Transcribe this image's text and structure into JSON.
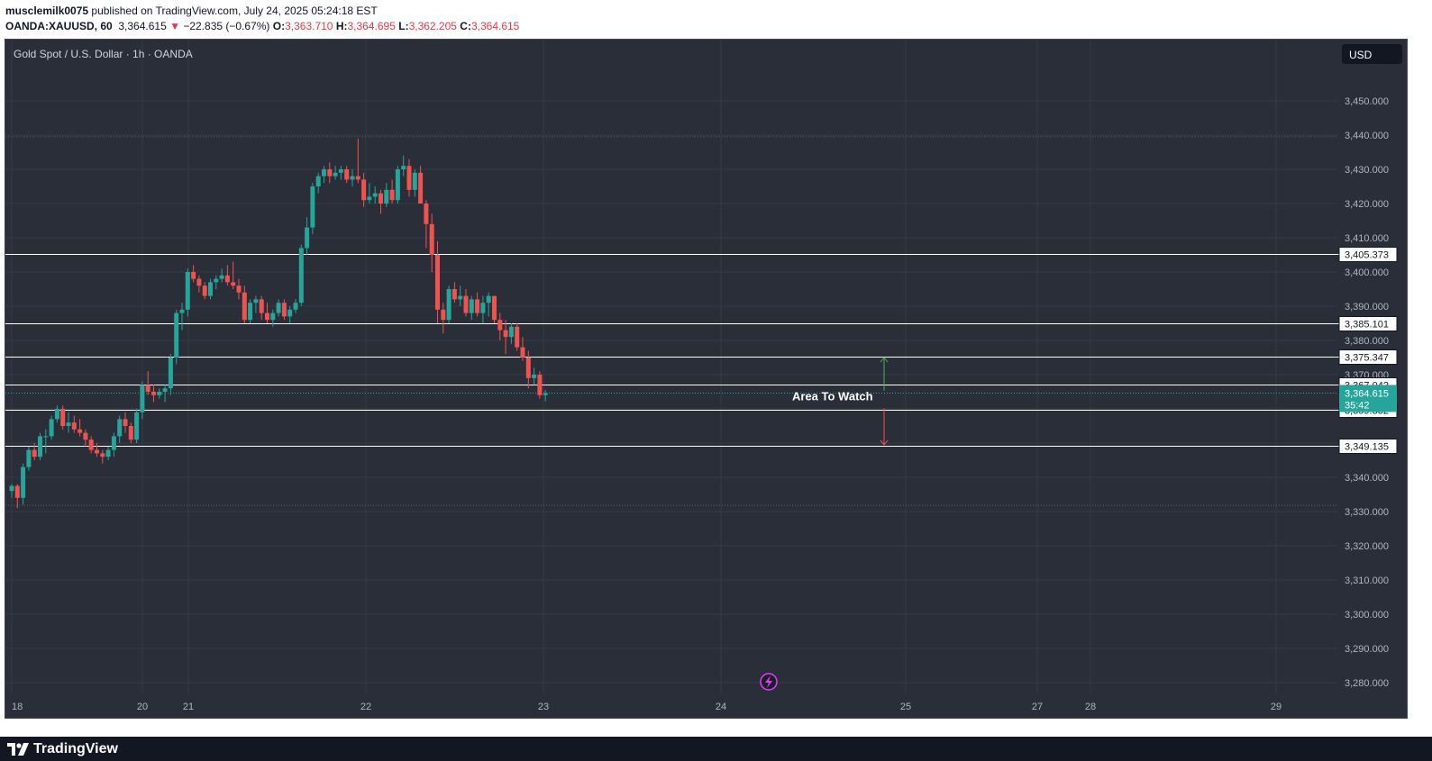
{
  "header": {
    "user": "musclemilk0075",
    "published_text": "published on TradingView.com, July 24, 2025 05:24:18 EST",
    "symbol": "OANDA:XAUUSD, 60",
    "last": "3,364.615",
    "change": "−22.835 (−0.67%)",
    "open_label": "O:",
    "open": "3,363.710",
    "high_label": "H:",
    "high": "3,364.695",
    "low_label": "L:",
    "low": "3,362.205",
    "close_label": "C:",
    "close": "3,364.615"
  },
  "footer": {
    "brand": "TradingView"
  },
  "chart_data": {
    "type": "candlestick",
    "title": "Gold Spot / U.S. Dollar · 1h · OANDA",
    "currency_button": "USD",
    "ylim": [
      3275,
      3460
    ],
    "y_ticks": [
      "3,450.000",
      "3,440.000",
      "3,430.000",
      "3,420.000",
      "3,410.000",
      "3,400.000",
      "3,390.000",
      "3,380.000",
      "3,370.000",
      "3,360.000",
      "3,350.000",
      "3,340.000",
      "3,330.000",
      "3,320.000",
      "3,310.000",
      "3,300.000",
      "3,290.000",
      "3,280.000"
    ],
    "x_ticks": [
      "18",
      "20",
      "21",
      "22",
      "23",
      "24",
      "25",
      "27",
      "28",
      "29"
    ],
    "horizontal_levels": [
      {
        "value": 3405.373,
        "label": "3,405.373"
      },
      {
        "value": 3385.101,
        "label": "3,385.101"
      },
      {
        "value": 3375.347,
        "label": "3,375.347"
      },
      {
        "value": 3367.042,
        "label": "3,367.042"
      },
      {
        "value": 3359.832,
        "label": "3,359.832"
      },
      {
        "value": 3349.135,
        "label": "3,349.135"
      }
    ],
    "current_price": {
      "value": 3364.615,
      "label": "3,364.615",
      "countdown": "35:42"
    },
    "dotted_levels": [
      3439.5,
      3331.8
    ],
    "annotation": {
      "text": "Area To Watch",
      "up_target": 3375.0,
      "down_target": 3349.5
    },
    "candles": [
      [
        3336,
        3338,
        3334,
        3337.5
      ],
      [
        3337.5,
        3338,
        3331,
        3334
      ],
      [
        3334,
        3344,
        3332,
        3343
      ],
      [
        3343,
        3349,
        3342,
        3348
      ],
      [
        3348,
        3350,
        3345,
        3346
      ],
      [
        3346,
        3353,
        3345,
        3352
      ],
      [
        3352,
        3354,
        3347,
        3352
      ],
      [
        3352,
        3358,
        3351,
        3357
      ],
      [
        3357,
        3361,
        3356,
        3360
      ],
      [
        3360,
        3361,
        3354,
        3355
      ],
      [
        3355,
        3359,
        3353,
        3356
      ],
      [
        3356,
        3358,
        3353,
        3354
      ],
      [
        3354,
        3357,
        3352,
        3353
      ],
      [
        3353,
        3354,
        3349,
        3351
      ],
      [
        3351,
        3352,
        3347,
        3348
      ],
      [
        3348,
        3350,
        3346,
        3347
      ],
      [
        3347,
        3348,
        3344,
        3346
      ],
      [
        3346,
        3349,
        3345,
        3348
      ],
      [
        3348,
        3353,
        3346,
        3352
      ],
      [
        3352,
        3358,
        3350,
        3357
      ],
      [
        3357,
        3359,
        3353,
        3355
      ],
      [
        3355,
        3356,
        3350,
        3351
      ],
      [
        3351,
        3360,
        3350,
        3359
      ],
      [
        3359,
        3368,
        3357,
        3367
      ],
      [
        3367,
        3371,
        3364,
        3365
      ],
      [
        3365,
        3367,
        3362,
        3364
      ],
      [
        3364,
        3366,
        3363,
        3365
      ],
      [
        3365,
        3367,
        3362,
        3366
      ],
      [
        3366,
        3376,
        3364,
        3375
      ],
      [
        3375,
        3389,
        3373,
        3388
      ],
      [
        3388,
        3391,
        3383,
        3389
      ],
      [
        3389,
        3401,
        3387,
        3400
      ],
      [
        3400,
        3402,
        3397,
        3398
      ],
      [
        3398,
        3399,
        3394,
        3396
      ],
      [
        3396,
        3397,
        3392,
        3393
      ],
      [
        3393,
        3398,
        3392,
        3397
      ],
      [
        3397,
        3399,
        3395,
        3398
      ],
      [
        3398,
        3401,
        3397,
        3399
      ],
      [
        3399,
        3402,
        3396,
        3397
      ],
      [
        3397,
        3403,
        3395,
        3396
      ],
      [
        3396,
        3398,
        3392,
        3394
      ],
      [
        3394,
        3396,
        3385,
        3386
      ],
      [
        3386,
        3392,
        3385,
        3391
      ],
      [
        3391,
        3393,
        3388,
        3392
      ],
      [
        3392,
        3393,
        3386,
        3388
      ],
      [
        3388,
        3391,
        3385,
        3386
      ],
      [
        3386,
        3389,
        3384,
        3388
      ],
      [
        3388,
        3392,
        3387,
        3391
      ],
      [
        3391,
        3392,
        3386,
        3387
      ],
      [
        3387,
        3390,
        3385,
        3389
      ],
      [
        3389,
        3392,
        3388,
        3391
      ],
      [
        3391,
        3408,
        3390,
        3407
      ],
      [
        3407,
        3416,
        3405,
        3413
      ],
      [
        3413,
        3426,
        3411,
        3425
      ],
      [
        3425,
        3429,
        3423,
        3428
      ],
      [
        3428,
        3431,
        3426,
        3430
      ],
      [
        3430,
        3432,
        3426,
        3428
      ],
      [
        3428,
        3431,
        3427,
        3429
      ],
      [
        3429,
        3431,
        3427,
        3430
      ],
      [
        3430,
        3431,
        3426,
        3427
      ],
      [
        3427,
        3430,
        3425,
        3428
      ],
      [
        3428,
        3439,
        3426,
        3427
      ],
      [
        3427,
        3429,
        3419,
        3421
      ],
      [
        3421,
        3426,
        3420,
        3422
      ],
      [
        3422,
        3425,
        3420,
        3423
      ],
      [
        3423,
        3424,
        3417,
        3420
      ],
      [
        3420,
        3426,
        3419,
        3424
      ],
      [
        3424,
        3427,
        3420,
        3421
      ],
      [
        3421,
        3431,
        3420,
        3430
      ],
      [
        3430,
        3434,
        3428,
        3431
      ],
      [
        3431,
        3433,
        3422,
        3424
      ],
      [
        3424,
        3430,
        3422,
        3429
      ],
      [
        3429,
        3431,
        3420,
        3420
      ],
      [
        3420,
        3421,
        3407,
        3414
      ],
      [
        3414,
        3417,
        3400,
        3405
      ],
      [
        3405,
        3409,
        3385,
        3389
      ],
      [
        3389,
        3391,
        3382,
        3386
      ],
      [
        3386,
        3396,
        3385,
        3395
      ],
      [
        3395,
        3397,
        3391,
        3392
      ],
      [
        3392,
        3396,
        3390,
        3393
      ],
      [
        3393,
        3395,
        3387,
        3388
      ],
      [
        3388,
        3393,
        3386,
        3392
      ],
      [
        3392,
        3394,
        3387,
        3388
      ],
      [
        3388,
        3393,
        3385,
        3391
      ],
      [
        3391,
        3394,
        3387,
        3393
      ],
      [
        3393,
        3393,
        3385,
        3386
      ],
      [
        3386,
        3388,
        3380,
        3383
      ],
      [
        3383,
        3386,
        3376,
        3381
      ],
      [
        3381,
        3385,
        3379,
        3384
      ],
      [
        3384,
        3385,
        3377,
        3378
      ],
      [
        3378,
        3381,
        3374,
        3375
      ],
      [
        3375,
        3377,
        3366,
        3369
      ],
      [
        3369,
        3372,
        3367,
        3370
      ],
      [
        3370,
        3371,
        3363,
        3364
      ],
      [
        3364,
        3365.5,
        3362.2,
        3364.6
      ]
    ]
  }
}
